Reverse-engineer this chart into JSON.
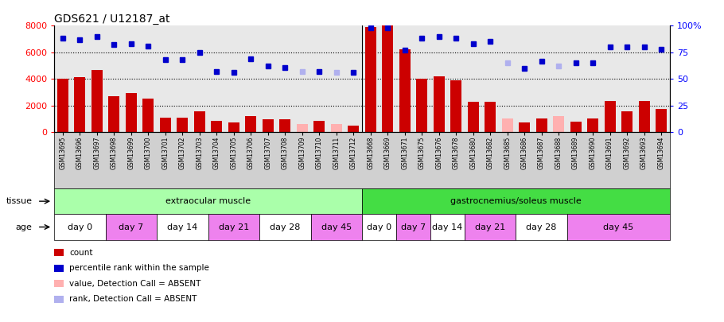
{
  "title": "GDS621 / U12187_at",
  "samples": [
    "GSM13695",
    "GSM13696",
    "GSM13697",
    "GSM13698",
    "GSM13699",
    "GSM13700",
    "GSM13701",
    "GSM13702",
    "GSM13703",
    "GSM13704",
    "GSM13705",
    "GSM13706",
    "GSM13707",
    "GSM13708",
    "GSM13709",
    "GSM13710",
    "GSM13711",
    "GSM13712",
    "GSM13668",
    "GSM13669",
    "GSM13671",
    "GSM13675",
    "GSM13676",
    "GSM13678",
    "GSM13680",
    "GSM13682",
    "GSM13685",
    "GSM13686",
    "GSM13687",
    "GSM13688",
    "GSM13689",
    "GSM13690",
    "GSM13691",
    "GSM13692",
    "GSM13693",
    "GSM13694"
  ],
  "count_values": [
    4000,
    4150,
    4700,
    2700,
    2950,
    2500,
    1100,
    1100,
    1550,
    850,
    700,
    1200,
    950,
    950,
    600,
    850,
    600,
    500,
    7900,
    8000,
    6200,
    4000,
    4200,
    3900,
    2250,
    2300,
    1050,
    700,
    1050,
    1200,
    800,
    1050,
    2350,
    1550,
    2350,
    1750
  ],
  "count_absent": [
    false,
    false,
    false,
    false,
    false,
    false,
    false,
    false,
    false,
    false,
    false,
    false,
    false,
    false,
    true,
    false,
    true,
    false,
    false,
    false,
    false,
    false,
    false,
    false,
    false,
    false,
    true,
    false,
    false,
    true,
    false,
    false,
    false,
    false,
    false,
    false
  ],
  "percentile_values": [
    88,
    87,
    90,
    82,
    83,
    81,
    68,
    68,
    75,
    57,
    56,
    69,
    62,
    61,
    57,
    57,
    56,
    56,
    98,
    98,
    77,
    88,
    90,
    88,
    83,
    85,
    65,
    60,
    67,
    62,
    65,
    65,
    80,
    80,
    80,
    78
  ],
  "percentile_absent": [
    false,
    false,
    false,
    false,
    false,
    false,
    false,
    false,
    false,
    false,
    false,
    false,
    false,
    false,
    true,
    false,
    true,
    false,
    false,
    false,
    false,
    false,
    false,
    false,
    false,
    false,
    true,
    false,
    false,
    true,
    false,
    false,
    false,
    false,
    false,
    false
  ],
  "ylim_left": [
    0,
    8000
  ],
  "ylim_right": [
    0,
    100
  ],
  "yticks_left": [
    0,
    2000,
    4000,
    6000,
    8000
  ],
  "yticks_right": [
    0,
    25,
    50,
    75,
    100
  ],
  "bar_color": "#cc0000",
  "bar_absent_color": "#ffb0b0",
  "dot_color": "#0000cc",
  "dot_absent_color": "#b0b0ee",
  "tissue_groups": [
    {
      "label": "extraocular muscle",
      "start": 0,
      "end": 18,
      "color": "#aaffaa"
    },
    {
      "label": "gastrocnemius/soleus muscle",
      "start": 18,
      "end": 36,
      "color": "#44dd44"
    }
  ],
  "age_groups": [
    {
      "label": "day 0",
      "start": 0,
      "end": 3,
      "color": "#ffffff"
    },
    {
      "label": "day 7",
      "start": 3,
      "end": 6,
      "color": "#ee82ee"
    },
    {
      "label": "day 14",
      "start": 6,
      "end": 9,
      "color": "#ffffff"
    },
    {
      "label": "day 21",
      "start": 9,
      "end": 12,
      "color": "#ee82ee"
    },
    {
      "label": "day 28",
      "start": 12,
      "end": 15,
      "color": "#ffffff"
    },
    {
      "label": "day 45",
      "start": 15,
      "end": 18,
      "color": "#ee82ee"
    },
    {
      "label": "day 0",
      "start": 18,
      "end": 20,
      "color": "#ffffff"
    },
    {
      "label": "day 7",
      "start": 20,
      "end": 22,
      "color": "#ee82ee"
    },
    {
      "label": "day 14",
      "start": 22,
      "end": 24,
      "color": "#ffffff"
    },
    {
      "label": "day 21",
      "start": 24,
      "end": 27,
      "color": "#ee82ee"
    },
    {
      "label": "day 28",
      "start": 27,
      "end": 30,
      "color": "#ffffff"
    },
    {
      "label": "day 45",
      "start": 30,
      "end": 36,
      "color": "#ee82ee"
    }
  ],
  "legend_items": [
    {
      "label": "count",
      "color": "#cc0000"
    },
    {
      "label": "percentile rank within the sample",
      "color": "#0000cc"
    },
    {
      "label": "value, Detection Call = ABSENT",
      "color": "#ffb0b0"
    },
    {
      "label": "rank, Detection Call = ABSENT",
      "color": "#b0b0ee"
    }
  ],
  "tissue_label": "tissue",
  "age_label": "age",
  "chart_bg": "#e8e8e8",
  "label_bg": "#d0d0d0"
}
